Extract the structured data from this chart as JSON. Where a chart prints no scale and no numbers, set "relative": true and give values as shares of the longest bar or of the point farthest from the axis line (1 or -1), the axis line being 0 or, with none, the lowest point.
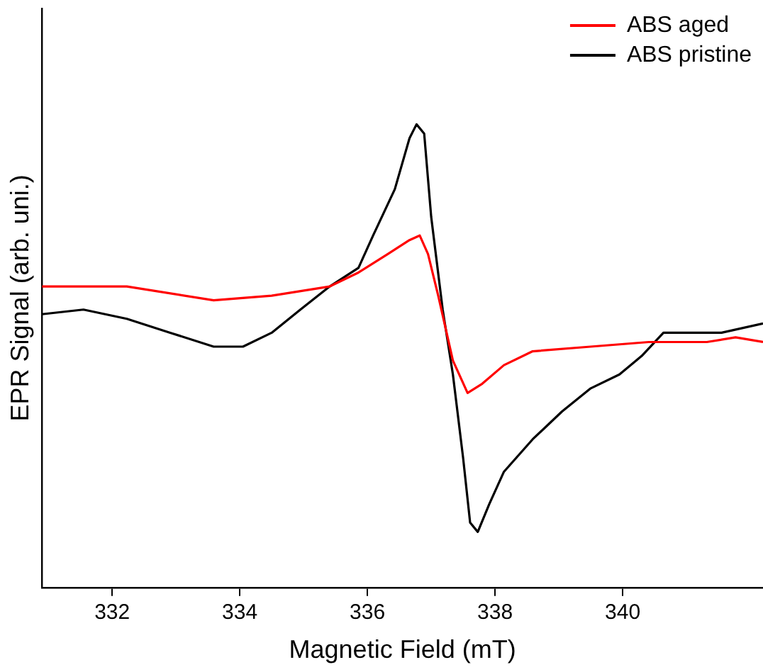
{
  "chart_data": {
    "type": "line",
    "xlabel": "Magnetic Field (mT)",
    "ylabel": "EPR Signal (arb. uni.)",
    "relative": true,
    "xlim": [
      330.9,
      342.2
    ],
    "xticks": [
      332,
      334,
      336,
      338,
      340
    ],
    "legend": "top right",
    "grid": false,
    "marker": "none",
    "series": [
      {
        "name": "ABS aged",
        "color": "#ff0000",
        "x": [
          330.9,
          332.23,
          333.59,
          334.5,
          335.41,
          335.86,
          336.32,
          336.66,
          336.82,
          336.95,
          337.11,
          337.34,
          337.57,
          337.8,
          338.14,
          338.59,
          339.5,
          340.41,
          341.32,
          341.77,
          342.2
        ],
        "values": [
          0.65,
          0.65,
          0.62,
          0.63,
          0.65,
          0.68,
          0.72,
          0.75,
          0.76,
          0.72,
          0.63,
          0.49,
          0.42,
          0.44,
          0.48,
          0.51,
          0.52,
          0.53,
          0.53,
          0.54,
          0.53
        ]
      },
      {
        "name": "ABS pristine",
        "color": "#000000",
        "x": [
          330.9,
          331.55,
          332.23,
          332.91,
          333.59,
          334.05,
          334.5,
          334.95,
          335.41,
          335.86,
          336.09,
          336.43,
          336.66,
          336.77,
          336.89,
          337.0,
          337.18,
          337.34,
          337.5,
          337.61,
          337.73,
          337.91,
          338.14,
          338.59,
          339.05,
          339.5,
          339.95,
          340.3,
          340.64,
          340.98,
          341.55,
          342.2
        ],
        "values": [
          0.59,
          0.6,
          0.58,
          0.55,
          0.52,
          0.52,
          0.55,
          0.6,
          0.65,
          0.69,
          0.76,
          0.86,
          0.97,
          1,
          0.98,
          0.8,
          0.6,
          0.46,
          0.28,
          0.14,
          0.12,
          0.18,
          0.25,
          0.32,
          0.38,
          0.43,
          0.46,
          0.5,
          0.55,
          0.55,
          0.55,
          0.57
        ]
      }
    ]
  }
}
